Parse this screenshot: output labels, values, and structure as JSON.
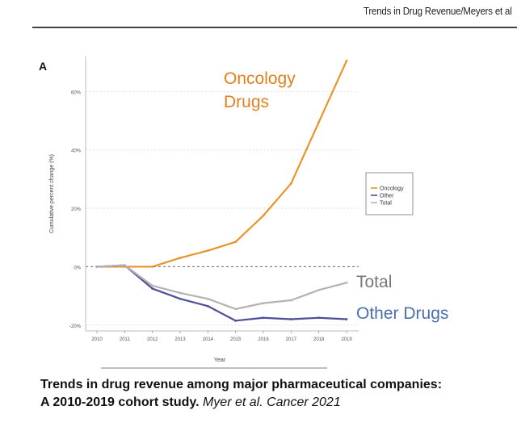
{
  "header": {
    "running_title": "Trends in Drug Revenue/Meyers et al"
  },
  "figure": {
    "panel_letter": "A"
  },
  "chart_data": {
    "type": "line",
    "xlabel": "Year",
    "ylabel": "Cumulative percent change (%)",
    "x": [
      "2010",
      "2011",
      "2012",
      "2013",
      "2014",
      "2015",
      "2016",
      "2017",
      "2018",
      "2019"
    ],
    "yticks": [
      "60%",
      "40%",
      "20%",
      "0%",
      "-20%"
    ],
    "ytick_values": [
      60,
      40,
      20,
      0,
      -20
    ],
    "ylim": [
      -22,
      72
    ],
    "grid": "horizontal-dotted",
    "legend_position": "right",
    "series": [
      {
        "name": "Oncology",
        "color": "#e8942a",
        "values": [
          0,
          0,
          0,
          3,
          5.5,
          8.5,
          17.5,
          28.5,
          49.5,
          70.5
        ]
      },
      {
        "name": "Other",
        "color": "#4d4f9a",
        "values": [
          0,
          0.5,
          -7.5,
          -11,
          -13.5,
          -18.5,
          -17.5,
          -18,
          -17.5,
          -18
        ]
      },
      {
        "name": "Total",
        "color": "#b3b3b3",
        "values": [
          0,
          0.5,
          -6.5,
          -9,
          -11,
          -14.5,
          -12.5,
          -11.5,
          -8,
          -5.5
        ]
      }
    ],
    "annotations": [
      {
        "text_line1": "Oncology",
        "text_line2": "Drugs",
        "color": "#e0801f"
      },
      {
        "text": "Total",
        "color": "#777777"
      },
      {
        "text": "Other Drugs",
        "color": "#4a6fae"
      }
    ]
  },
  "caption": {
    "line1": "Trends in drug revenue among major pharmaceutical companies:",
    "line2_bold": "A 2010-2019 cohort study.",
    "line2_citation": "Myer et al. Cancer 2021"
  }
}
